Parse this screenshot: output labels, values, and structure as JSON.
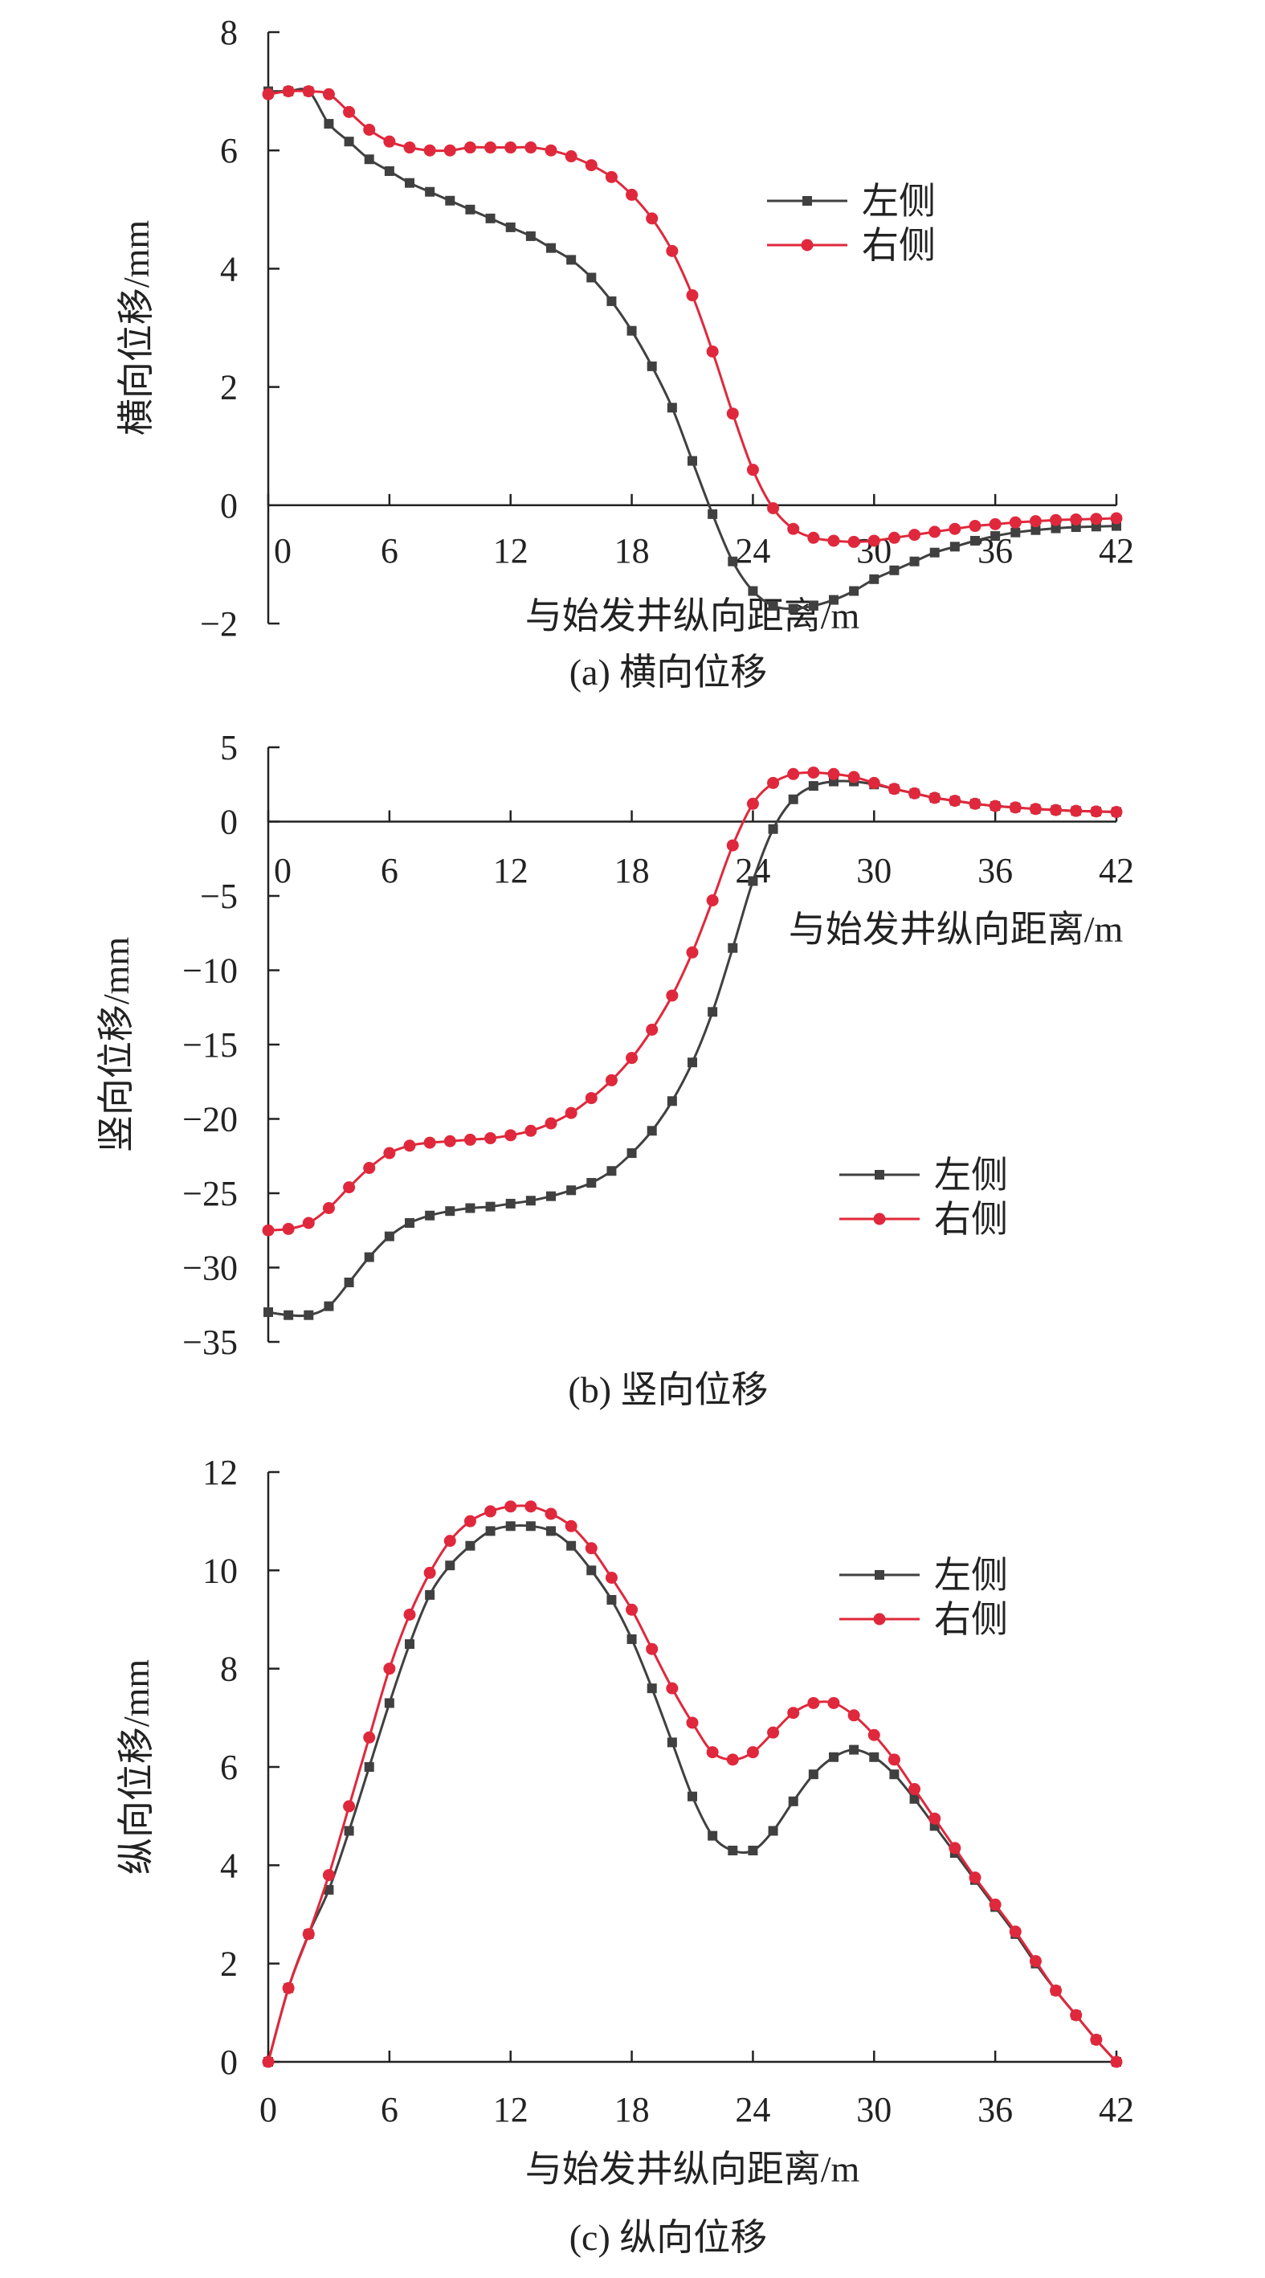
{
  "colors": {
    "left": "#404040",
    "right": "#e0283c",
    "axis": "#222222"
  },
  "chart_data": [
    {
      "type": "line",
      "title": "",
      "caption": "(a) 横向位移",
      "xlabel": "与始发井纵向距离/m",
      "ylabel": "横向位移/mm",
      "xlim": [
        0,
        42
      ],
      "ylim": [
        -2,
        8
      ],
      "xticks": [
        0,
        6,
        12,
        18,
        24,
        30,
        36,
        42
      ],
      "yticks": [
        -2,
        0,
        2,
        4,
        6,
        8
      ],
      "legend": "top-right",
      "series": [
        {
          "name": "左侧",
          "marker": "square",
          "x": [
            0,
            1,
            2,
            3,
            4,
            5,
            6,
            7,
            8,
            9,
            10,
            11,
            12,
            13,
            14,
            15,
            16,
            17,
            18,
            19,
            20,
            21,
            22,
            23,
            24,
            25,
            26,
            27,
            28,
            29,
            30,
            31,
            32,
            33,
            34,
            35,
            36,
            37,
            38,
            39,
            40,
            41,
            42
          ],
          "y": [
            7.0,
            7.0,
            7.0,
            6.45,
            6.15,
            5.85,
            5.65,
            5.45,
            5.3,
            5.15,
            5.0,
            4.85,
            4.7,
            4.55,
            4.35,
            4.15,
            3.85,
            3.45,
            2.95,
            2.35,
            1.65,
            0.75,
            -0.15,
            -0.95,
            -1.45,
            -1.7,
            -1.75,
            -1.7,
            -1.6,
            -1.45,
            -1.25,
            -1.1,
            -0.95,
            -0.8,
            -0.7,
            -0.6,
            -0.52,
            -0.46,
            -0.42,
            -0.39,
            -0.37,
            -0.36,
            -0.35
          ]
        },
        {
          "name": "右侧",
          "marker": "circle",
          "x": [
            0,
            1,
            2,
            3,
            4,
            5,
            6,
            7,
            8,
            9,
            10,
            11,
            12,
            13,
            14,
            15,
            16,
            17,
            18,
            19,
            20,
            21,
            22,
            23,
            24,
            25,
            26,
            27,
            28,
            29,
            30,
            31,
            32,
            33,
            34,
            35,
            36,
            37,
            38,
            39,
            40,
            41,
            42
          ],
          "y": [
            6.95,
            7.0,
            7.0,
            6.95,
            6.65,
            6.35,
            6.15,
            6.05,
            6.0,
            6.0,
            6.05,
            6.05,
            6.05,
            6.05,
            6.0,
            5.9,
            5.75,
            5.55,
            5.25,
            4.85,
            4.3,
            3.55,
            2.6,
            1.55,
            0.6,
            -0.05,
            -0.4,
            -0.55,
            -0.6,
            -0.62,
            -0.6,
            -0.55,
            -0.5,
            -0.45,
            -0.4,
            -0.35,
            -0.32,
            -0.29,
            -0.27,
            -0.25,
            -0.24,
            -0.23,
            -0.22
          ]
        }
      ]
    },
    {
      "type": "line",
      "title": "",
      "caption": "(b) 竖向位移",
      "xlabel": "与始发井纵向距离/m",
      "ylabel": "竖向位移/mm",
      "xlim": [
        0,
        42
      ],
      "ylim": [
        -35,
        5
      ],
      "xticks": [
        0,
        6,
        12,
        18,
        24,
        30,
        36,
        42
      ],
      "yticks": [
        -35,
        -30,
        -25,
        -20,
        -15,
        -10,
        -5,
        0,
        5
      ],
      "legend": "right",
      "series": [
        {
          "name": "左侧",
          "marker": "square",
          "x": [
            0,
            1,
            2,
            3,
            4,
            5,
            6,
            7,
            8,
            9,
            10,
            11,
            12,
            13,
            14,
            15,
            16,
            17,
            18,
            19,
            20,
            21,
            22,
            23,
            24,
            25,
            26,
            27,
            28,
            29,
            30,
            31,
            32,
            33,
            34,
            35,
            36,
            37,
            38,
            39,
            40,
            41,
            42
          ],
          "y": [
            -33.0,
            -33.2,
            -33.2,
            -32.6,
            -31.0,
            -29.3,
            -27.9,
            -27.0,
            -26.5,
            -26.2,
            -26.0,
            -25.9,
            -25.7,
            -25.5,
            -25.2,
            -24.8,
            -24.3,
            -23.5,
            -22.3,
            -20.8,
            -18.8,
            -16.2,
            -12.8,
            -8.5,
            -4.0,
            -0.5,
            1.5,
            2.4,
            2.7,
            2.7,
            2.5,
            2.2,
            1.9,
            1.6,
            1.4,
            1.2,
            1.05,
            0.95,
            0.85,
            0.78,
            0.72,
            0.68,
            0.65
          ]
        },
        {
          "name": "右侧",
          "marker": "circle",
          "x": [
            0,
            1,
            2,
            3,
            4,
            5,
            6,
            7,
            8,
            9,
            10,
            11,
            12,
            13,
            14,
            15,
            16,
            17,
            18,
            19,
            20,
            21,
            22,
            23,
            24,
            25,
            26,
            27,
            28,
            29,
            30,
            31,
            32,
            33,
            34,
            35,
            36,
            37,
            38,
            39,
            40,
            41,
            42
          ],
          "y": [
            -27.5,
            -27.4,
            -27.0,
            -26.0,
            -24.6,
            -23.3,
            -22.3,
            -21.8,
            -21.6,
            -21.5,
            -21.4,
            -21.3,
            -21.1,
            -20.8,
            -20.3,
            -19.6,
            -18.6,
            -17.4,
            -15.9,
            -14.0,
            -11.7,
            -8.8,
            -5.3,
            -1.6,
            1.2,
            2.6,
            3.2,
            3.3,
            3.2,
            3.0,
            2.6,
            2.2,
            1.9,
            1.6,
            1.4,
            1.2,
            1.05,
            0.95,
            0.85,
            0.78,
            0.72,
            0.68,
            0.65
          ]
        }
      ]
    },
    {
      "type": "line",
      "title": "",
      "caption": "(c) 纵向位移",
      "xlabel": "与始发井纵向距离/m",
      "ylabel": "纵向位移/mm",
      "xlim": [
        0,
        42
      ],
      "ylim": [
        0,
        12
      ],
      "xticks": [
        0,
        6,
        12,
        18,
        24,
        30,
        36,
        42
      ],
      "yticks": [
        0,
        2,
        4,
        6,
        8,
        10,
        12
      ],
      "legend": "top-right",
      "series": [
        {
          "name": "左侧",
          "marker": "square",
          "x": [
            0,
            1,
            2,
            3,
            4,
            5,
            6,
            7,
            8,
            9,
            10,
            11,
            12,
            13,
            14,
            15,
            16,
            17,
            18,
            19,
            20,
            21,
            22,
            23,
            24,
            25,
            26,
            27,
            28,
            29,
            30,
            31,
            32,
            33,
            34,
            35,
            36,
            37,
            38,
            39,
            40,
            41,
            42
          ],
          "y": [
            0,
            1.5,
            2.6,
            3.5,
            4.7,
            6.0,
            7.3,
            8.5,
            9.5,
            10.1,
            10.5,
            10.8,
            10.9,
            10.9,
            10.8,
            10.5,
            10.0,
            9.4,
            8.6,
            7.6,
            6.5,
            5.4,
            4.6,
            4.3,
            4.3,
            4.7,
            5.3,
            5.85,
            6.2,
            6.35,
            6.2,
            5.85,
            5.35,
            4.8,
            4.25,
            3.7,
            3.15,
            2.6,
            2.0,
            1.45,
            0.95,
            0.45,
            0
          ]
        },
        {
          "name": "右侧",
          "marker": "circle",
          "x": [
            0,
            1,
            2,
            3,
            4,
            5,
            6,
            7,
            8,
            9,
            10,
            11,
            12,
            13,
            14,
            15,
            16,
            17,
            18,
            19,
            20,
            21,
            22,
            23,
            24,
            25,
            26,
            27,
            28,
            29,
            30,
            31,
            32,
            33,
            34,
            35,
            36,
            37,
            38,
            39,
            40,
            41,
            42
          ],
          "y": [
            0,
            1.5,
            2.6,
            3.8,
            5.2,
            6.6,
            8.0,
            9.1,
            9.95,
            10.6,
            11.0,
            11.2,
            11.3,
            11.3,
            11.15,
            10.9,
            10.45,
            9.85,
            9.2,
            8.4,
            7.6,
            6.9,
            6.3,
            6.15,
            6.3,
            6.7,
            7.1,
            7.3,
            7.3,
            7.05,
            6.65,
            6.15,
            5.55,
            4.95,
            4.35,
            3.75,
            3.2,
            2.65,
            2.05,
            1.45,
            0.95,
            0.45,
            0
          ]
        }
      ]
    }
  ]
}
